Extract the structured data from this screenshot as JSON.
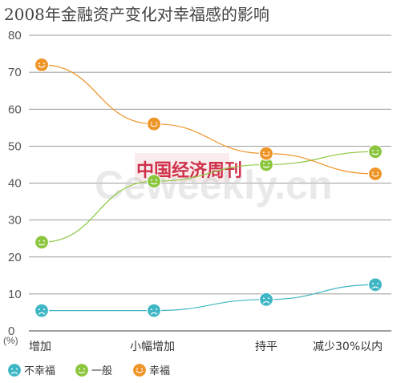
{
  "chart_data": {
    "type": "line",
    "title": "2008年金融资产变化对幸福感的影响",
    "unit_label": "(%)",
    "categories": [
      "增加",
      "小幅增加",
      "持平",
      "减少30%以内"
    ],
    "ylim": [
      0,
      80
    ],
    "yticks": [
      "0",
      "10",
      "20",
      "30",
      "40",
      "50",
      "60",
      "70",
      "80"
    ],
    "grid": true,
    "legend_position": "bottom-left",
    "series": [
      {
        "name": "不幸福",
        "values": [
          5.5,
          5.5,
          8.5,
          12.5
        ],
        "color": "#3fb6c4",
        "face": "sad"
      },
      {
        "name": "一般",
        "values": [
          24.0,
          40.5,
          45.0,
          48.5
        ],
        "color": "#8cc63f",
        "face": "neutral"
      },
      {
        "name": "幸福",
        "values": [
          72.0,
          56.0,
          48.0,
          42.5
        ],
        "color": "#ef9426",
        "face": "happy"
      }
    ]
  },
  "watermark": {
    "chinese_text": "中国经济周刊",
    "english_text": "Ceweekly.cn"
  }
}
